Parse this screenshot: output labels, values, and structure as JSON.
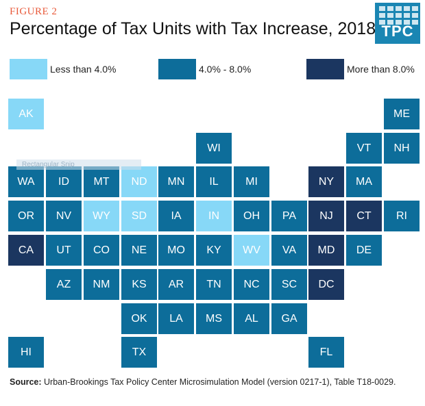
{
  "figure_label": "FIGURE 2",
  "title": "Percentage of Tax Units with Tax Increase, 2018",
  "logo": {
    "text": "TPC",
    "icon": "tpc-grid-logo"
  },
  "colors": {
    "low": "#87d8f7",
    "mid": "#0d6d9a",
    "high": "#1b3660",
    "figure_label": "#e8593a",
    "logo_bg": "#1a86b3"
  },
  "legend": [
    {
      "key": "low",
      "label": "Less than 4.0%"
    },
    {
      "key": "mid",
      "label": "4.0% - 8.0%"
    },
    {
      "key": "high",
      "label": "More than 8.0%"
    }
  ],
  "ghost_label": "Rectangular Snip",
  "states": [
    {
      "code": "AK",
      "cat": "low"
    },
    {
      "code": "ME",
      "cat": "mid"
    },
    {
      "code": "WI",
      "cat": "mid"
    },
    {
      "code": "VT",
      "cat": "mid"
    },
    {
      "code": "NH",
      "cat": "mid"
    },
    {
      "code": "WA",
      "cat": "mid"
    },
    {
      "code": "ID",
      "cat": "mid"
    },
    {
      "code": "MT",
      "cat": "mid"
    },
    {
      "code": "ND",
      "cat": "low"
    },
    {
      "code": "MN",
      "cat": "mid"
    },
    {
      "code": "IL",
      "cat": "mid"
    },
    {
      "code": "MI",
      "cat": "mid"
    },
    {
      "code": "NY",
      "cat": "high"
    },
    {
      "code": "MA",
      "cat": "mid"
    },
    {
      "code": "OR",
      "cat": "mid"
    },
    {
      "code": "NV",
      "cat": "mid"
    },
    {
      "code": "WY",
      "cat": "low"
    },
    {
      "code": "SD",
      "cat": "low"
    },
    {
      "code": "IA",
      "cat": "mid"
    },
    {
      "code": "IN",
      "cat": "low"
    },
    {
      "code": "OH",
      "cat": "mid"
    },
    {
      "code": "PA",
      "cat": "mid"
    },
    {
      "code": "NJ",
      "cat": "high"
    },
    {
      "code": "CT",
      "cat": "high"
    },
    {
      "code": "RI",
      "cat": "mid"
    },
    {
      "code": "CA",
      "cat": "high"
    },
    {
      "code": "UT",
      "cat": "mid"
    },
    {
      "code": "CO",
      "cat": "mid"
    },
    {
      "code": "NE",
      "cat": "mid"
    },
    {
      "code": "MO",
      "cat": "mid"
    },
    {
      "code": "KY",
      "cat": "mid"
    },
    {
      "code": "WV",
      "cat": "low"
    },
    {
      "code": "VA",
      "cat": "mid"
    },
    {
      "code": "MD",
      "cat": "high"
    },
    {
      "code": "DE",
      "cat": "mid"
    },
    {
      "code": "AZ",
      "cat": "mid"
    },
    {
      "code": "NM",
      "cat": "mid"
    },
    {
      "code": "KS",
      "cat": "mid"
    },
    {
      "code": "AR",
      "cat": "mid"
    },
    {
      "code": "TN",
      "cat": "mid"
    },
    {
      "code": "NC",
      "cat": "mid"
    },
    {
      "code": "SC",
      "cat": "mid"
    },
    {
      "code": "DC",
      "cat": "high"
    },
    {
      "code": "OK",
      "cat": "mid"
    },
    {
      "code": "LA",
      "cat": "mid"
    },
    {
      "code": "MS",
      "cat": "mid"
    },
    {
      "code": "AL",
      "cat": "mid"
    },
    {
      "code": "GA",
      "cat": "mid"
    },
    {
      "code": "HI",
      "cat": "mid"
    },
    {
      "code": "TX",
      "cat": "mid"
    },
    {
      "code": "FL",
      "cat": "mid"
    }
  ],
  "source": {
    "label": "Source:",
    "text": "Urban-Brookings Tax Policy Center Microsimulation Model (version 0217-1), Table T18-0029."
  }
}
